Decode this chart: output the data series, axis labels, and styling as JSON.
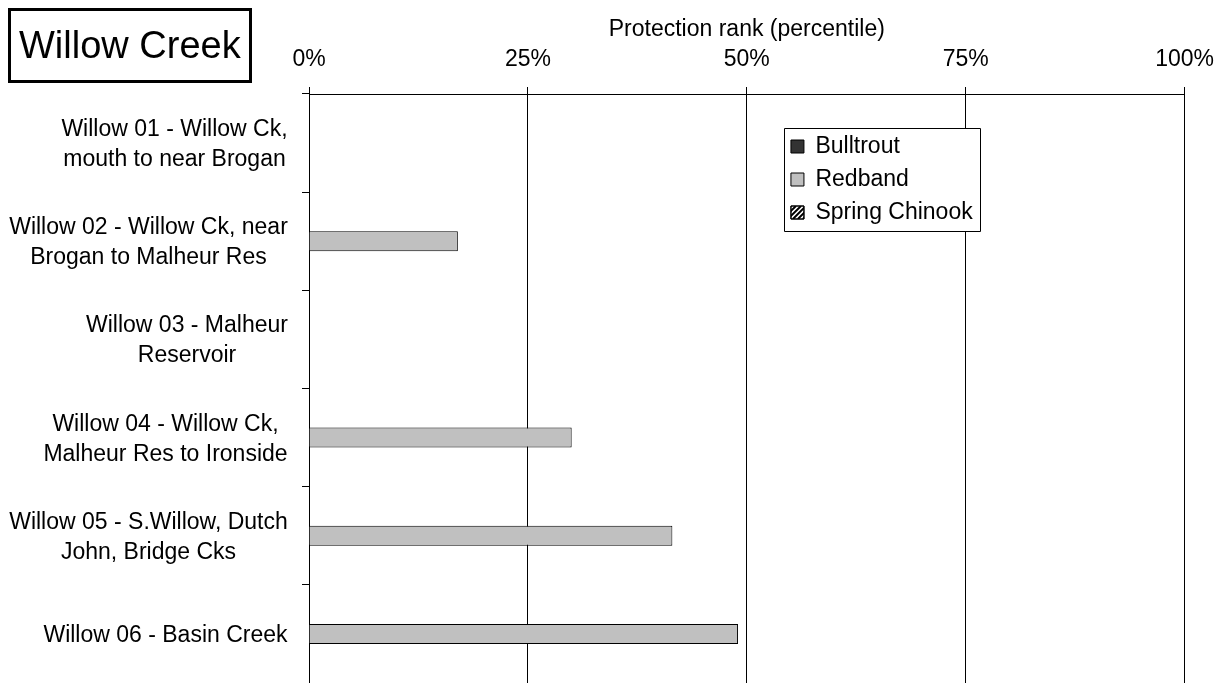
{
  "chart_data": {
    "type": "bar",
    "orientation": "horizontal",
    "title": "Willow Creek",
    "xlabel": "Protection rank (percentile)",
    "categories": [
      "Willow 01 - Willow Ck, mouth to near Brogan",
      "Willow 02 - Willow Ck, near Brogan to Malheur Res",
      "Willow 03 - Malheur Reservoir",
      "Willow 04 - Willow Ck, Malheur Res to Ironside",
      "Willow 05 - S.Willow, Dutch John, Bridge Cks",
      "Willow 06 - Basin Creek"
    ],
    "series": [
      {
        "name": "Bulltrout",
        "color": "#333333",
        "values": [
          null,
          null,
          null,
          null,
          null,
          null
        ]
      },
      {
        "name": "Redband",
        "color": "#c0c0c0",
        "values": [
          null,
          17,
          null,
          30,
          41.5,
          49
        ]
      },
      {
        "name": "Spring Chinook",
        "color": "#ffffff",
        "values": [
          null,
          null,
          null,
          null,
          null,
          null
        ]
      }
    ],
    "xlim": [
      0,
      100
    ],
    "xticks": [
      {
        "value": 0,
        "label": "0%"
      },
      {
        "value": 25,
        "label": "25%"
      },
      {
        "value": 50,
        "label": "50%"
      },
      {
        "value": 75,
        "label": "75%"
      },
      {
        "value": 100,
        "label": "100%"
      }
    ],
    "grid": "x",
    "legend": "top right"
  }
}
